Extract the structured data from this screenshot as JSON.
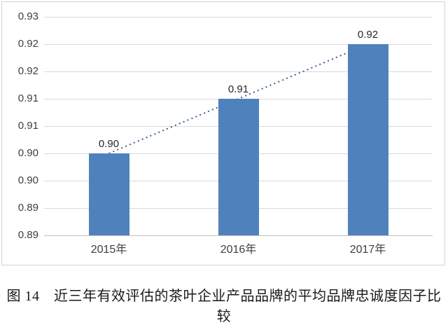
{
  "figure": {
    "caption": "图 14　近三年有效评估的茶叶企业产品品牌的平均品牌忠诚度因子比较"
  },
  "chart_data": {
    "type": "bar",
    "title": "",
    "xlabel": "",
    "ylabel": "",
    "categories": [
      "2015年",
      "2016年",
      "2017年"
    ],
    "values": [
      0.9,
      0.91,
      0.92
    ],
    "data_labels": [
      "0.90",
      "0.91",
      "0.92"
    ],
    "ylim": [
      0.885,
      0.925
    ],
    "y_major_unit": 0.005,
    "y_tick_labels_bottom_to_top": [
      "0.89",
      "0.89",
      "0.90",
      "0.90",
      "0.91",
      "0.91",
      "0.92",
      "0.92",
      "0.93"
    ],
    "grid": true,
    "legend": "none",
    "trendline": {
      "type": "linear",
      "style": "dotted",
      "from_value": 0.9,
      "to_value": 0.92
    },
    "colors": {
      "bar": "#4f81bd",
      "trendline": "#376092",
      "gridline": "#d9d9d9",
      "axis_line": "#c3c3c3",
      "tick_text": "#3f3f3f",
      "data_label_text": "#262626",
      "frame_border": "#d4d4d4"
    }
  }
}
